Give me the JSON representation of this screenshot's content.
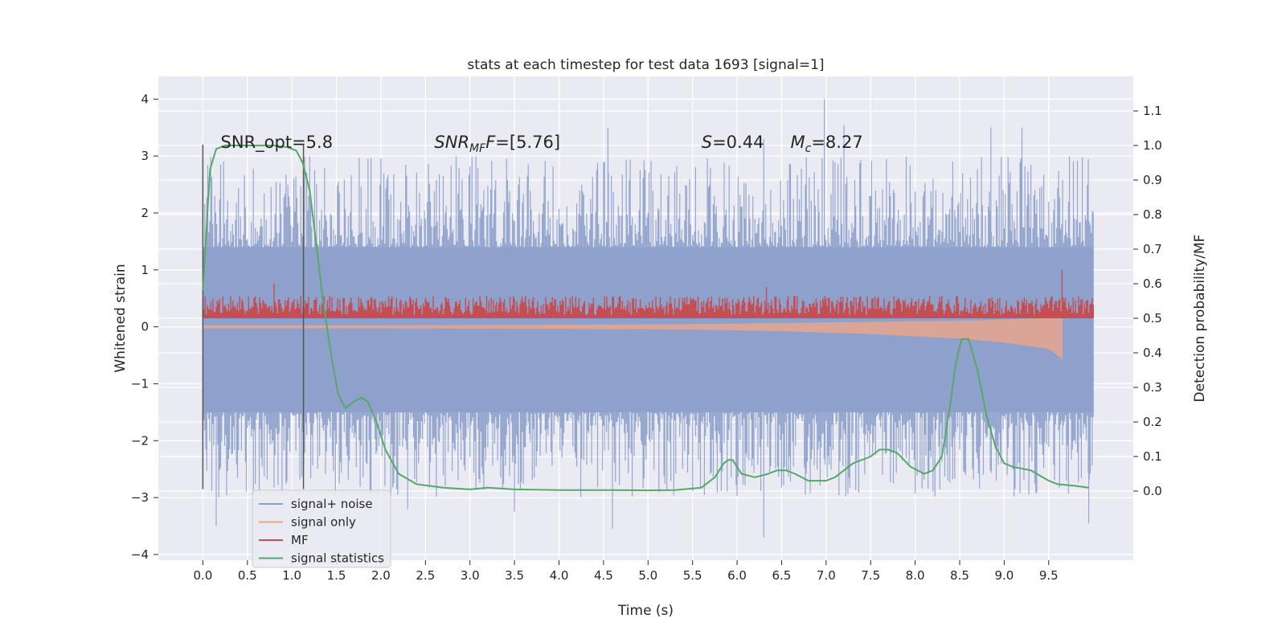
{
  "chart_data": {
    "type": "line",
    "title": "stats at each timestep for test data 1693 [signal=1]",
    "xlabel": "Time (s)",
    "ylabel": "Whitened strain",
    "y2label": "Detection probability/MF",
    "xlim": [
      -0.5,
      10.45
    ],
    "ylim": [
      -4.1,
      4.4
    ],
    "y2lim": [
      -0.2,
      1.2
    ],
    "xticks": [
      "0.0",
      "0.5",
      "1.0",
      "1.5",
      "2.0",
      "2.5",
      "3.0",
      "3.5",
      "4.0",
      "4.5",
      "5.0",
      "5.5",
      "6.0",
      "6.5",
      "7.0",
      "7.5",
      "8.0",
      "8.5",
      "9.0",
      "9.5"
    ],
    "yticks": [
      "4",
      "3",
      "2",
      "1",
      "0",
      "−1",
      "−2",
      "−3",
      "−4"
    ],
    "y2ticks": [
      "1.1",
      "1.0",
      "0.9",
      "0.8",
      "0.7",
      "0.6",
      "0.5",
      "0.4",
      "0.3",
      "0.2",
      "0.1",
      "0.0"
    ],
    "grid": true,
    "legend_position": "bottom-left",
    "colors": {
      "background": "#eaeaf2",
      "grid": "#ffffff",
      "noise": "#8da0cb",
      "signal_only": "#e8a58e",
      "mf": "#c44e52",
      "stat": "#55a868",
      "marker": "#555555"
    },
    "annotations": {
      "snr_opt": "SNR_opt=5.8",
      "snr_mf_prefix": "SNR",
      "snr_mf_sub": "MF",
      "snr_mf_suffix": "=[5.76]",
      "s_label": "S",
      "s_value": "=0.44",
      "mc_label": "M",
      "mc_sub": "c",
      "mc_value": "=8.27"
    },
    "vertical_markers": [
      0.0,
      1.13
    ],
    "series": [
      {
        "name": "signal+ noise",
        "axis": "left",
        "x_range": [
          0.0,
          10.0
        ],
        "envelope_upper": 1.4,
        "envelope_lower": -1.5,
        "spike_max": [
          2.8,
          3.5,
          4.0
        ],
        "spike_min": [
          -3.5,
          -3.7
        ]
      },
      {
        "name": "signal only",
        "axis": "left",
        "x": [
          0.0,
          2.0,
          4.0,
          5.5,
          6.5,
          7.5,
          8.5,
          9.0,
          9.5,
          9.65
        ],
        "lower": [
          -0.02,
          -0.02,
          -0.03,
          -0.04,
          -0.07,
          -0.12,
          -0.2,
          -0.27,
          -0.38,
          -0.55
        ],
        "upper": [
          0.02,
          0.02,
          0.03,
          0.04,
          0.06,
          0.08,
          0.1,
          0.12,
          0.15,
          0.3
        ]
      },
      {
        "name": "MF",
        "axis": "right",
        "x_range": [
          0.0,
          10.0
        ],
        "base": 0.5,
        "band_top": 0.56,
        "peaks": [
          {
            "x": 0.8,
            "y": 0.6
          },
          {
            "x": 6.33,
            "y": 0.59
          },
          {
            "x": 9.65,
            "y": 0.64
          }
        ]
      },
      {
        "name": "signal statistics",
        "axis": "right",
        "x": [
          0.0,
          0.05,
          0.08,
          0.15,
          0.25,
          0.4,
          0.6,
          0.8,
          0.95,
          1.05,
          1.12,
          1.2,
          1.28,
          1.35,
          1.45,
          1.52,
          1.6,
          1.7,
          1.78,
          1.85,
          1.95,
          2.05,
          2.2,
          2.4,
          2.7,
          3.0,
          3.2,
          3.5,
          4.0,
          4.5,
          5.0,
          5.3,
          5.6,
          5.75,
          5.85,
          5.9,
          5.95,
          6.05,
          6.2,
          6.35,
          6.45,
          6.55,
          6.65,
          6.8,
          7.0,
          7.1,
          7.3,
          7.5,
          7.6,
          7.7,
          7.8,
          7.95,
          8.1,
          8.2,
          8.3,
          8.4,
          8.45,
          8.52,
          8.6,
          8.7,
          8.8,
          8.9,
          9.0,
          9.1,
          9.3,
          9.5,
          9.6,
          9.8,
          9.95
        ],
        "y": [
          0.58,
          0.8,
          0.93,
          0.99,
          1.0,
          1.0,
          1.0,
          1.0,
          0.995,
          0.985,
          0.95,
          0.87,
          0.7,
          0.55,
          0.38,
          0.28,
          0.24,
          0.26,
          0.27,
          0.26,
          0.2,
          0.12,
          0.05,
          0.02,
          0.01,
          0.005,
          0.01,
          0.005,
          0.003,
          0.003,
          0.002,
          0.003,
          0.01,
          0.04,
          0.08,
          0.09,
          0.09,
          0.05,
          0.04,
          0.05,
          0.06,
          0.06,
          0.05,
          0.03,
          0.03,
          0.04,
          0.08,
          0.1,
          0.12,
          0.12,
          0.11,
          0.07,
          0.05,
          0.06,
          0.1,
          0.26,
          0.36,
          0.44,
          0.44,
          0.35,
          0.22,
          0.13,
          0.08,
          0.07,
          0.06,
          0.03,
          0.02,
          0.015,
          0.01
        ]
      }
    ]
  }
}
